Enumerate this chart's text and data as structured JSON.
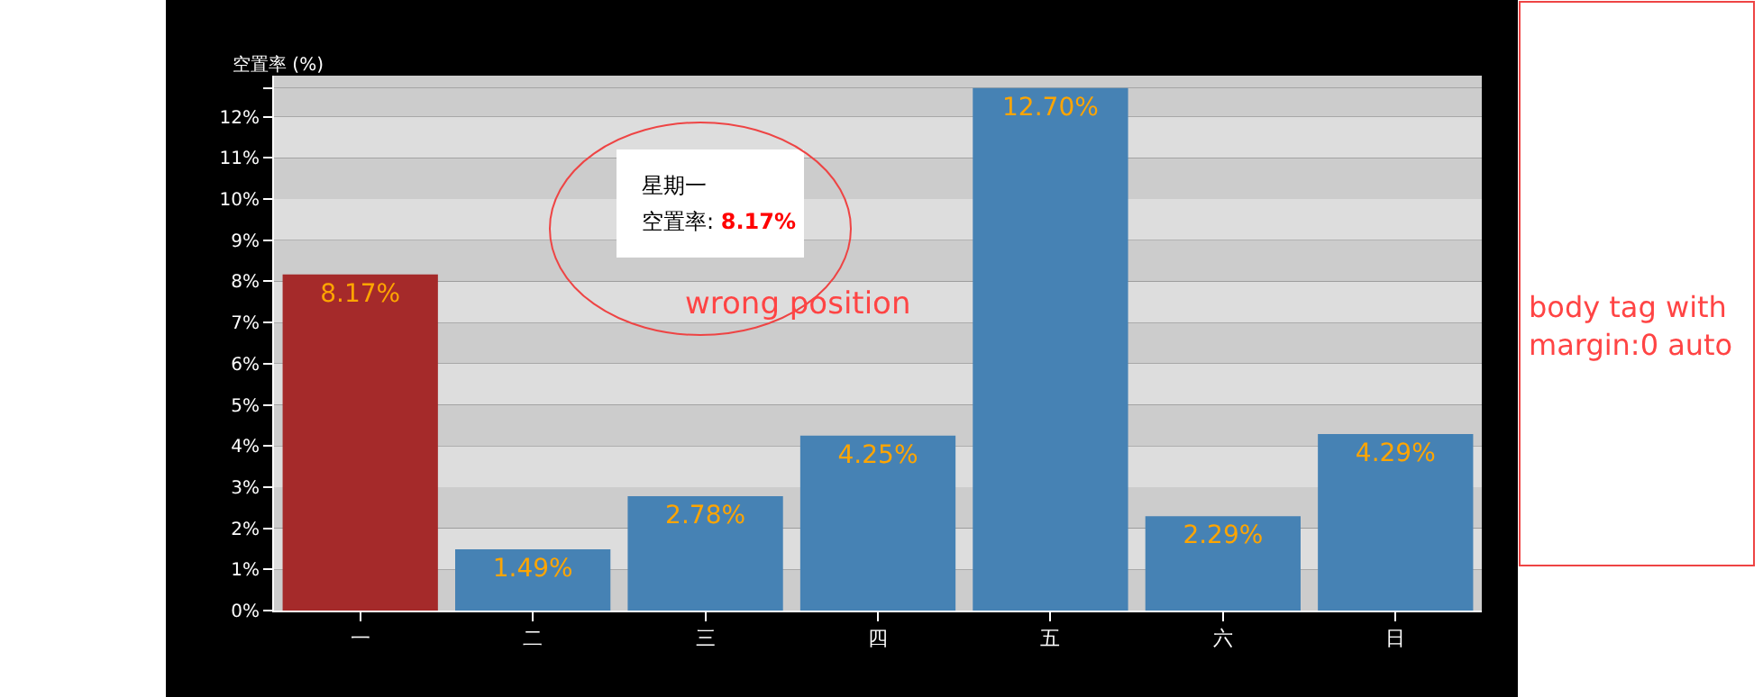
{
  "chart_data": {
    "type": "bar",
    "ylabel": "空置率 (%)",
    "categories": [
      "一",
      "二",
      "三",
      "四",
      "五",
      "六",
      "日"
    ],
    "values": [
      8.17,
      1.49,
      2.78,
      4.25,
      12.7,
      2.29,
      4.29
    ],
    "colors": [
      "#a52a2a",
      "#4682b4",
      "#4682b4",
      "#4682b4",
      "#4682b4",
      "#4682b4",
      "#4682b4"
    ],
    "value_labels": [
      "8.17%",
      "1.49%",
      "2.78%",
      "4.25%",
      "12.70%",
      "2.29%",
      "4.29%"
    ],
    "ylim": [
      0,
      13
    ],
    "yticks": [
      {
        "value": 0,
        "label": "0%"
      },
      {
        "value": 1,
        "label": "1%"
      },
      {
        "value": 2,
        "label": "2%"
      },
      {
        "value": 3,
        "label": "3%"
      },
      {
        "value": 4,
        "label": "4%"
      },
      {
        "value": 5,
        "label": "5%"
      },
      {
        "value": 6,
        "label": "6%"
      },
      {
        "value": 7,
        "label": "7%"
      },
      {
        "value": 8,
        "label": "8%"
      },
      {
        "value": 9,
        "label": "9%"
      },
      {
        "value": 10,
        "label": "10%"
      },
      {
        "value": 11,
        "label": "11%"
      },
      {
        "value": 12,
        "label": "12%"
      },
      {
        "value": 12.7,
        "label": null
      }
    ],
    "legend": false,
    "annotations": [
      "星期一",
      "空置率: 8.17%",
      "wrong position",
      "body tag with margin:0 auto"
    ]
  }
}
